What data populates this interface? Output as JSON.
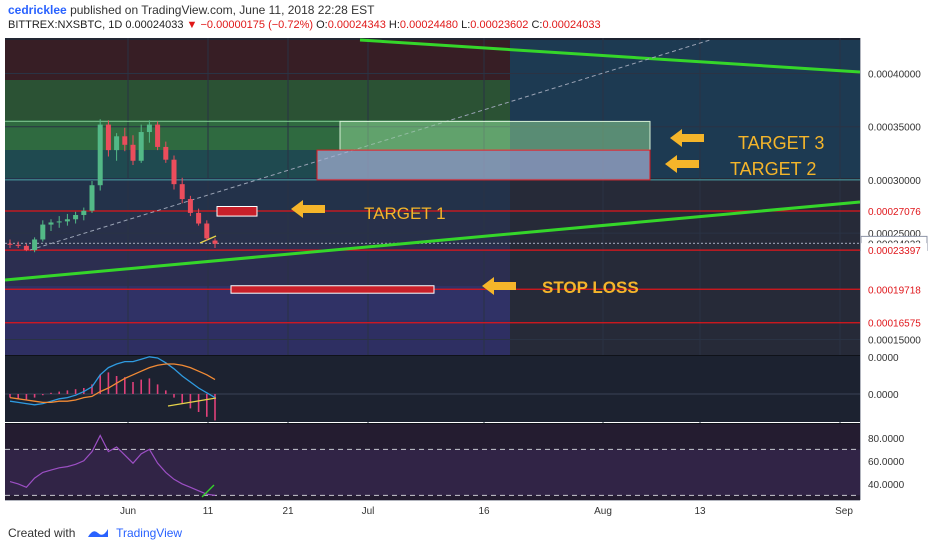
{
  "header": {
    "author": "cedricklee",
    "published": "published on TradingView.com, June 11, 2018 22:28 EST",
    "symbol": "BITTREX:NXSBTC, 1D",
    "last": "0.00024033",
    "change": "−0.00000175 (−0.72%)",
    "o_label": "O:",
    "o": "0.00024343",
    "h_label": "H:",
    "h": "0.00024480",
    "l_label": "L:",
    "l": "0.00023602",
    "c_label": "C:",
    "c": "0.00024033"
  },
  "footer": {
    "created_with": "Created with",
    "brand": "TradingView"
  },
  "colors": {
    "background": "#1c2230",
    "upper_zone": "#3a7a4a",
    "lower_zone": "#3a3a78",
    "level_line": "#e0161b",
    "trendline": "#35d62a",
    "arrow": "#f5b52a",
    "annotation_text": "#f5b52a",
    "macd_line": "#2f9be0",
    "signal_line": "#f28b35",
    "rsi_line": "#9c4fc4"
  },
  "annotations": {
    "target1": "TARGET 1",
    "target2": "TARGET 2",
    "target3": "TARGET 3",
    "stop_loss": "STOP LOSS"
  },
  "chart_data": {
    "type": "candlestick",
    "x_tick_labels": [
      "Jun",
      "11",
      "21",
      "Jul",
      "16",
      "Aug",
      "13",
      "Sep"
    ],
    "y_tick_labels": [
      "0.00040000",
      "0.00035000",
      "0.00030000",
      "0.00025000",
      "0.00015000"
    ],
    "ylim": [
      0.0001354,
      0.0004334
    ],
    "price_levels": [
      {
        "label": "0.00027076",
        "value": 0.00027076
      },
      {
        "label": "0.00024033",
        "value": 0.00024033
      },
      {
        "label": "0.00023397",
        "value": 0.00023397
      },
      {
        "label": "0.00019718",
        "value": 0.00019718
      },
      {
        "label": "0.00016575",
        "value": 0.00016575
      }
    ],
    "candles": [
      {
        "o": 0.00024,
        "h": 0.000244,
        "l": 0.000236,
        "c": 0.000239
      },
      {
        "o": 0.000239,
        "h": 0.000242,
        "l": 0.000236,
        "c": 0.000238
      },
      {
        "o": 0.000238,
        "h": 0.00024,
        "l": 0.000233,
        "c": 0.000234
      },
      {
        "o": 0.000234,
        "h": 0.000246,
        "l": 0.000232,
        "c": 0.000244
      },
      {
        "o": 0.000244,
        "h": 0.000262,
        "l": 0.000242,
        "c": 0.000258
      },
      {
        "o": 0.000258,
        "h": 0.000263,
        "l": 0.000252,
        "c": 0.00026
      },
      {
        "o": 0.00026,
        "h": 0.000266,
        "l": 0.000255,
        "c": 0.000261
      },
      {
        "o": 0.000261,
        "h": 0.000268,
        "l": 0.000257,
        "c": 0.000263
      },
      {
        "o": 0.000263,
        "h": 0.00027,
        "l": 0.000259,
        "c": 0.000267
      },
      {
        "o": 0.000267,
        "h": 0.000274,
        "l": 0.000262,
        "c": 0.000271
      },
      {
        "o": 0.000271,
        "h": 0.000299,
        "l": 0.000269,
        "c": 0.000295
      },
      {
        "o": 0.000295,
        "h": 0.000357,
        "l": 0.00029,
        "c": 0.000352
      },
      {
        "o": 0.000352,
        "h": 0.000356,
        "l": 0.000322,
        "c": 0.000328
      },
      {
        "o": 0.000328,
        "h": 0.000344,
        "l": 0.000318,
        "c": 0.000341
      },
      {
        "o": 0.000341,
        "h": 0.000349,
        "l": 0.000327,
        "c": 0.000333
      },
      {
        "o": 0.000333,
        "h": 0.000342,
        "l": 0.000314,
        "c": 0.000318
      },
      {
        "o": 0.000318,
        "h": 0.000352,
        "l": 0.000316,
        "c": 0.000345
      },
      {
        "o": 0.000345,
        "h": 0.000356,
        "l": 0.000335,
        "c": 0.000352
      },
      {
        "o": 0.000352,
        "h": 0.000355,
        "l": 0.000328,
        "c": 0.000331
      },
      {
        "o": 0.000331,
        "h": 0.000336,
        "l": 0.000316,
        "c": 0.000319
      },
      {
        "o": 0.000319,
        "h": 0.000323,
        "l": 0.000291,
        "c": 0.000296
      },
      {
        "o": 0.000296,
        "h": 0.000302,
        "l": 0.000278,
        "c": 0.000282
      },
      {
        "o": 0.000282,
        "h": 0.000285,
        "l": 0.000266,
        "c": 0.000269
      },
      {
        "o": 0.000269,
        "h": 0.000273,
        "l": 0.000257,
        "c": 0.000259
      },
      {
        "o": 0.000259,
        "h": 0.000262,
        "l": 0.000243,
        "c": 0.000245
      },
      {
        "o": 0.000243,
        "h": 0.000245,
        "l": 0.000236,
        "c": 0.00024
      }
    ],
    "macd": {
      "y_tick_labels": [
        "0.0000",
        "0.0000"
      ],
      "histogram": [
        -0.3,
        -0.4,
        -0.5,
        -0.3,
        -0.1,
        0.1,
        0.2,
        0.3,
        0.4,
        0.5,
        0.8,
        1.6,
        1.8,
        1.5,
        1.4,
        1.0,
        1.2,
        1.3,
        0.8,
        0.3,
        -0.3,
        -0.8,
        -1.2,
        -1.5,
        -1.9,
        -2.2
      ],
      "macd_line": [
        -0.6,
        -0.7,
        -0.8,
        -0.9,
        -0.8,
        -0.6,
        -0.4,
        -0.3,
        -0.1,
        0.2,
        0.6,
        1.6,
        2.2,
        2.5,
        2.7,
        2.7,
        2.9,
        3.1,
        3.0,
        2.6,
        2.1,
        1.5,
        1.0,
        0.5,
        0.1,
        -0.3
      ],
      "signal_line": [
        -0.3,
        -0.4,
        -0.5,
        -0.6,
        -0.7,
        -0.7,
        -0.6,
        -0.6,
        -0.5,
        -0.3,
        -0.2,
        0.2,
        0.5,
        0.9,
        1.3,
        1.6,
        1.9,
        2.2,
        2.4,
        2.5,
        2.5,
        2.4,
        2.2,
        1.9,
        1.6,
        1.2
      ]
    },
    "rsi": {
      "y_tick_labels": [
        "80.0000",
        "60.0000",
        "40.0000"
      ],
      "ylim": [
        26,
        92
      ],
      "bands": [
        70,
        30
      ],
      "values": [
        42,
        40,
        37,
        45,
        50,
        52,
        54,
        55,
        57,
        60,
        68,
        82,
        68,
        72,
        65,
        58,
        66,
        70,
        58,
        50,
        44,
        40,
        37,
        34,
        31,
        30
      ]
    }
  }
}
